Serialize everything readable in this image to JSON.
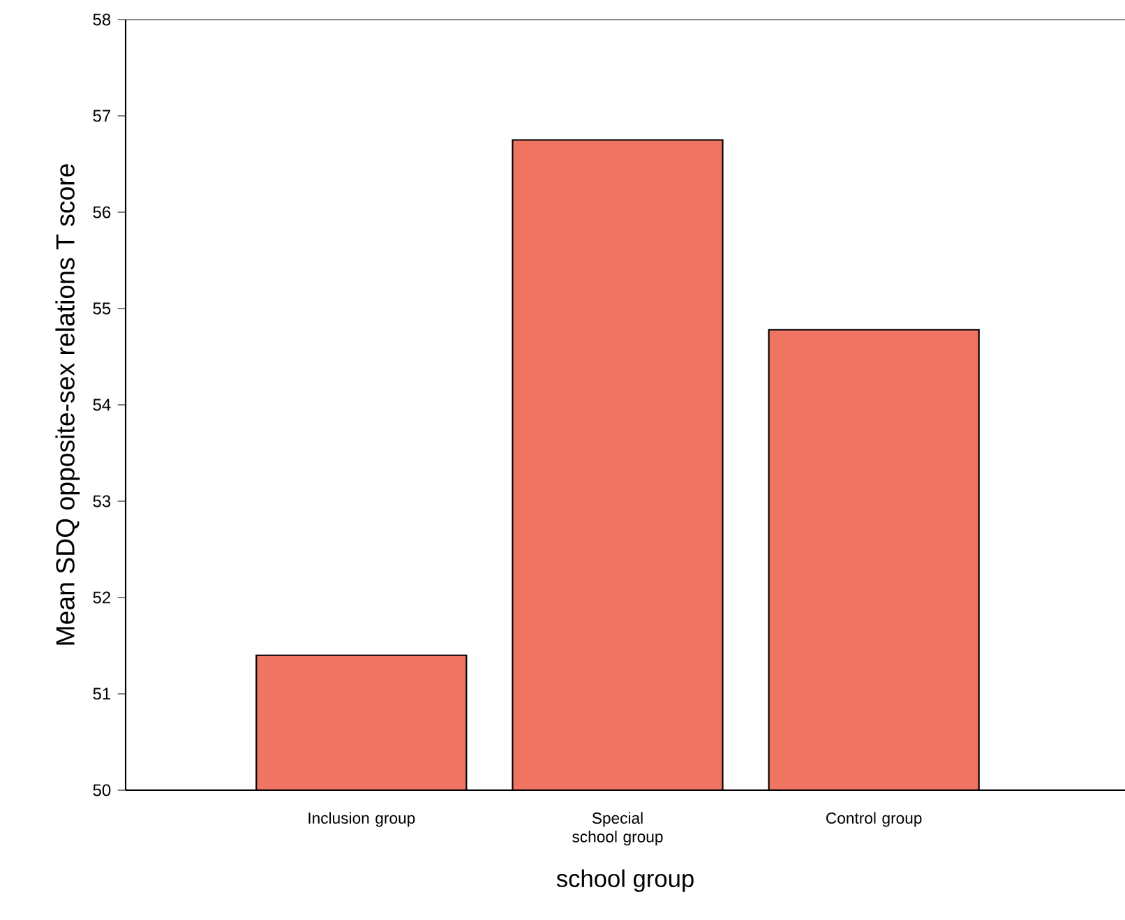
{
  "chart_data": {
    "type": "bar",
    "xlabel": "school group",
    "ylabel": "Mean SDQ opposite-sex relations T score",
    "categories": [
      "Inclusion group",
      "Special school group",
      "Control group"
    ],
    "values": [
      51.4,
      56.75,
      54.78
    ],
    "color": "#f07462",
    "ylim": [
      50,
      58
    ],
    "yticks": [
      50,
      51,
      52,
      53,
      54,
      55,
      56,
      57,
      58
    ],
    "grid": false
  }
}
